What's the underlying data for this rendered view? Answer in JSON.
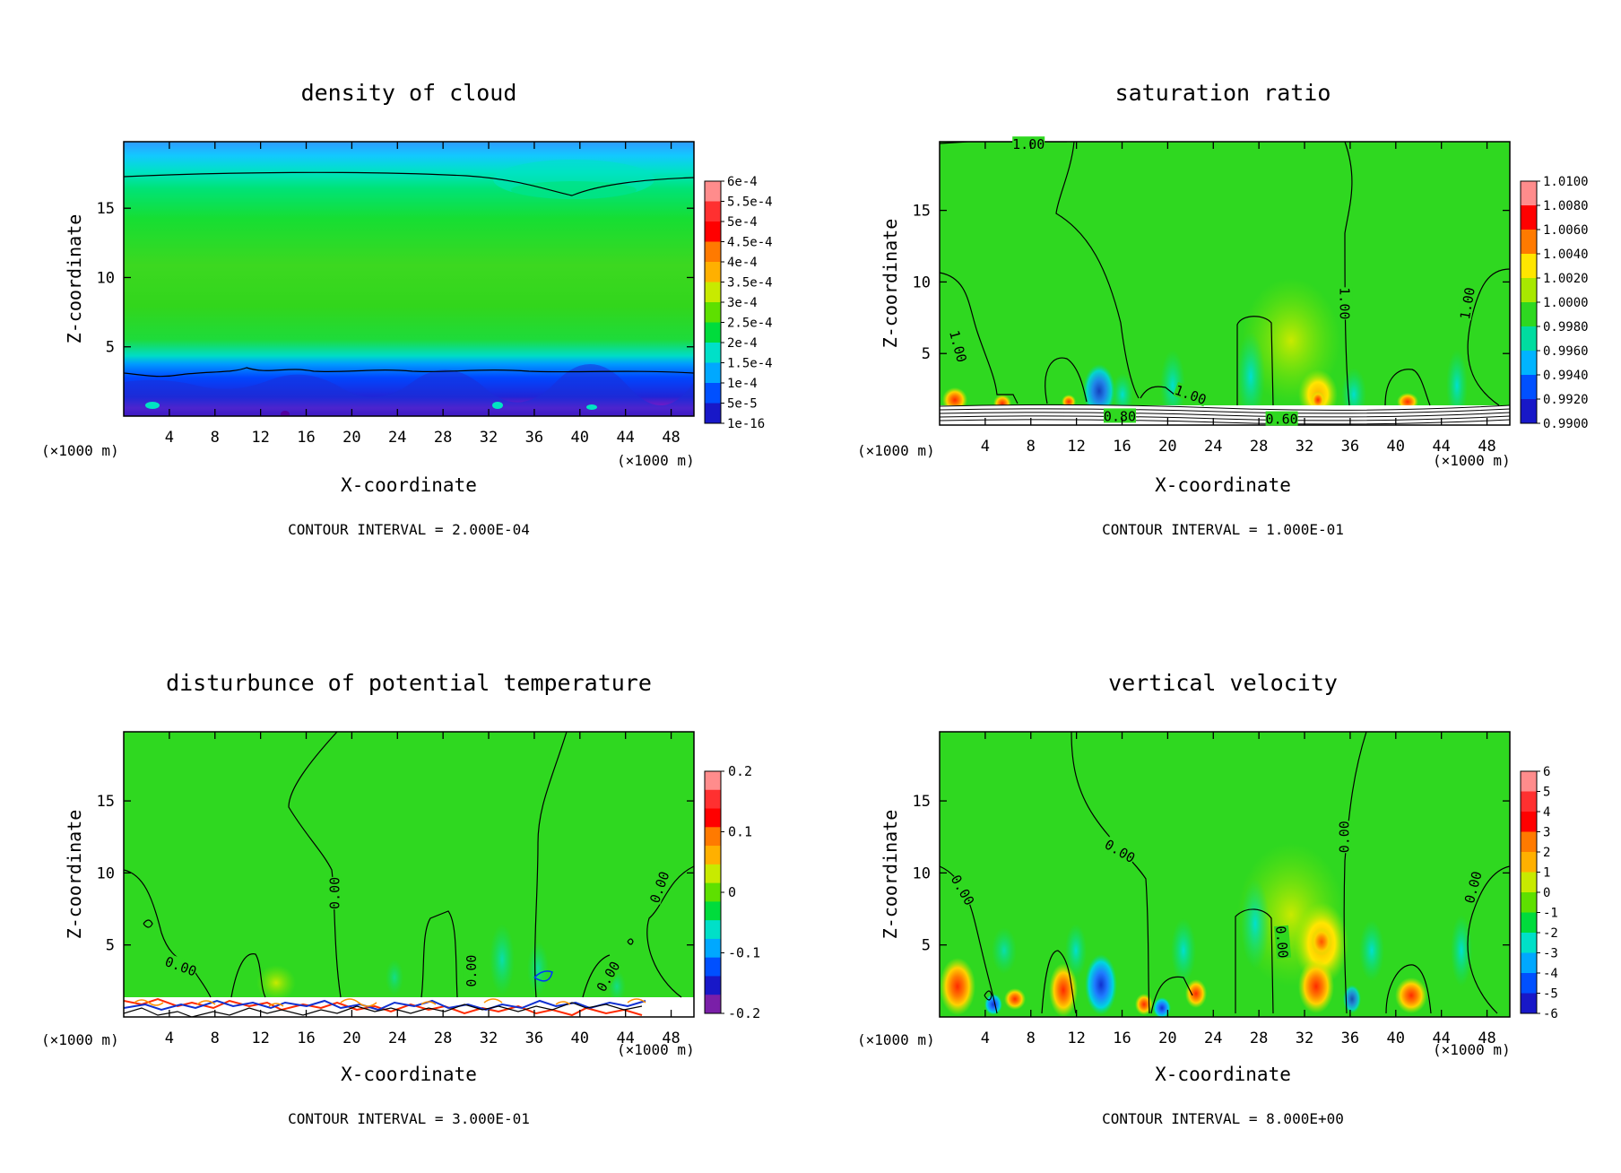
{
  "chart_data": [
    {
      "type": "heatmap",
      "title": "density of cloud",
      "xlabel": "X-coordinate",
      "ylabel": "Z-coordinate",
      "x_unit": "(×1000 m)",
      "xlim": [
        0,
        50
      ],
      "ylim": [
        0,
        19.8
      ],
      "x_ticks": [
        4,
        8,
        12,
        16,
        20,
        24,
        28,
        32,
        36,
        40,
        44,
        48
      ],
      "y_ticks": [
        5,
        10,
        15
      ],
      "colorbar_labels": [
        "6e-4",
        "5.5e-4",
        "5e-4",
        "4.5e-4",
        "4e-4",
        "3.5e-4",
        "3e-4",
        "2.5e-4",
        "2e-4",
        "1.5e-4",
        "1e-4",
        "5e-5",
        "1e-16"
      ],
      "contour_labels": [],
      "footer": "CONTOUR INTERVAL = 2.000E-04"
    },
    {
      "type": "heatmap",
      "title": "saturation ratio",
      "xlabel": "X-coordinate",
      "ylabel": "Z-coordinate",
      "x_unit": "(×1000 m)",
      "xlim": [
        0,
        50
      ],
      "ylim": [
        0,
        19.8
      ],
      "x_ticks": [
        4,
        8,
        12,
        16,
        20,
        24,
        28,
        32,
        36,
        40,
        44,
        48
      ],
      "y_ticks": [
        5,
        10,
        15
      ],
      "colorbar_labels": [
        "1.0100",
        "1.0080",
        "1.0060",
        "1.0040",
        "1.0020",
        "1.0000",
        "0.9980",
        "0.9960",
        "0.9940",
        "0.9920",
        "0.9900"
      ],
      "contour_labels": [
        {
          "text": "1.00",
          "x": 7.8,
          "z": 19.6,
          "rot": 0
        },
        {
          "text": "1.00",
          "x": 1.6,
          "z": 5.5,
          "rot": 75
        },
        {
          "text": "1.00",
          "x": 35.5,
          "z": 8.5,
          "rot": 90
        },
        {
          "text": "1.00",
          "x": 46.3,
          "z": 8.5,
          "rot": -80
        },
        {
          "text": "1.00",
          "x": 22.0,
          "z": 2.1,
          "rot": 20
        },
        {
          "text": "0.80",
          "x": 15.8,
          "z": 0.6,
          "rot": 0
        },
        {
          "text": "0.60",
          "x": 30.0,
          "z": 0.4,
          "rot": 0
        }
      ],
      "footer": "CONTOUR INTERVAL = 1.000E-01"
    },
    {
      "type": "heatmap",
      "title": "disturbunce of potential temperature",
      "xlabel": "X-coordinate",
      "ylabel": "Z-coordinate",
      "x_unit": "(×1000 m)",
      "xlim": [
        0,
        50
      ],
      "ylim": [
        0,
        19.8
      ],
      "x_ticks": [
        4,
        8,
        12,
        16,
        20,
        24,
        28,
        32,
        36,
        40,
        44,
        48
      ],
      "y_ticks": [
        5,
        10,
        15
      ],
      "colorbar_labels": [
        "0.2",
        "0.1",
        "0",
        "-0.1",
        "-0.2"
      ],
      "contour_labels": [
        {
          "text": "0.00",
          "x": 5.0,
          "z": 3.5,
          "rot": 20
        },
        {
          "text": "0.00",
          "x": 18.5,
          "z": 8.6,
          "rot": -90
        },
        {
          "text": "0.00",
          "x": 30.5,
          "z": 3.2,
          "rot": -90
        },
        {
          "text": "0.00",
          "x": 42.5,
          "z": 2.8,
          "rot": -60
        },
        {
          "text": "0.00",
          "x": 47.0,
          "z": 9.0,
          "rot": -70
        }
      ],
      "footer": "CONTOUR INTERVAL = 3.000E-01"
    },
    {
      "type": "heatmap",
      "title": "vertical velocity",
      "xlabel": "X-coordinate",
      "ylabel": "Z-coordinate",
      "x_unit": "(×1000 m)",
      "xlim": [
        0,
        50
      ],
      "ylim": [
        0,
        19.8
      ],
      "x_ticks": [
        4,
        8,
        12,
        16,
        20,
        24,
        28,
        32,
        36,
        40,
        44,
        48
      ],
      "y_ticks": [
        5,
        10,
        15
      ],
      "colorbar_labels": [
        "6",
        "5",
        "4",
        "3",
        "2",
        "1",
        "0",
        "-1",
        "-2",
        "-3",
        "-4",
        "-5",
        "-6"
      ],
      "contour_labels": [
        {
          "text": "0.00",
          "x": 15.8,
          "z": 11.5,
          "rot": 30
        },
        {
          "text": "0.00",
          "x": 35.5,
          "z": 12.5,
          "rot": -90
        },
        {
          "text": "0.00",
          "x": 2.0,
          "z": 8.8,
          "rot": 60
        },
        {
          "text": "0.00",
          "x": 30.0,
          "z": 5.2,
          "rot": 85
        },
        {
          "text": "0.00",
          "x": 46.8,
          "z": 9.0,
          "rot": -75
        }
      ],
      "footer": "CONTOUR INTERVAL = 8.000E+00"
    }
  ]
}
